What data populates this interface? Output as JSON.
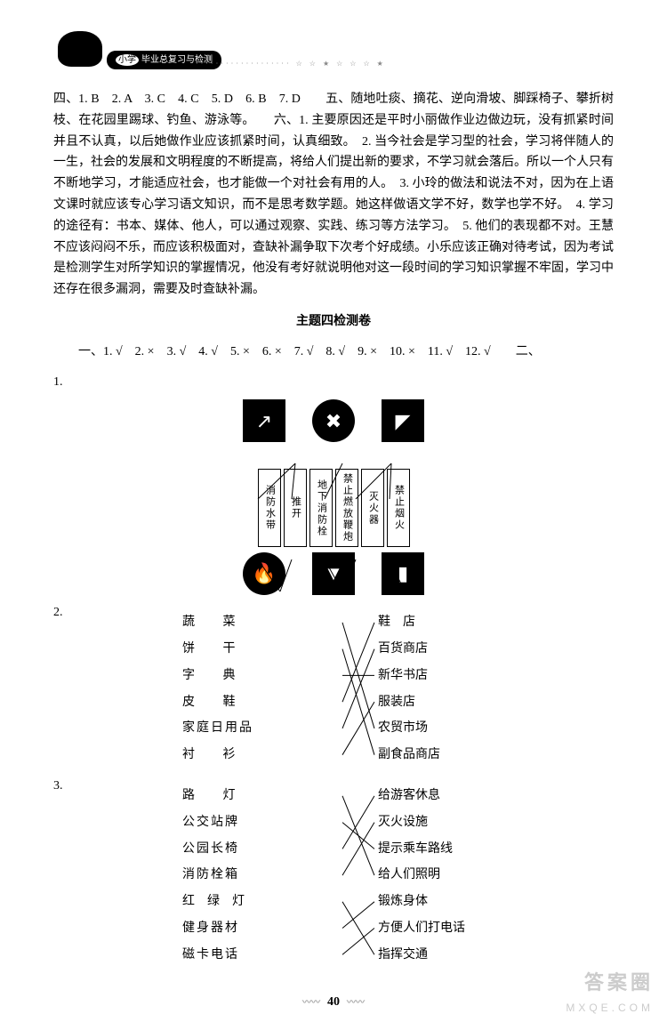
{
  "header": {
    "prefix": "小学",
    "title": "毕业总复习与检测",
    "dots": "···················    ☆  ☆  ★  ☆  ☆  ☆  ★"
  },
  "para1": "四、1. B　2. A　3. C　4. C　5. D　6. B　7. D　　五、随地吐痰、摘花、逆向滑坡、脚踩椅子、攀折树枝、在花园里踢球、钓鱼、游泳等。　　六、1. 主要原因还是平时小丽做作业边做边玩，没有抓紧时间并且不认真，以后她做作业应该抓紧时间，认真细致。　2. 当今社会是学习型的社会，学习将伴随人的一生，社会的发展和文明程度的不断提高，将给人们提出新的要求，不学习就会落后。所以一个人只有不断地学习，才能适应社会，也才能做一个对社会有用的人。　3. 小玲的做法和说法不对，因为在上语文课时就应该专心学习语文知识，而不是思考数学题。她这样做语文学不好，数学也学不好。　4. 学习的途径有：书本、媒体、他人，可以通过观察、实践、练习等方法学习。　5. 他们的表现都不对。王慧不应该闷闷不乐，而应该积极面对，查缺补漏争取下次考个好成绩。小乐应该正确对待考试，因为考试是检测学生对所学知识的掌握情况，他没有考好就说明他对这一段时间的学习知识掌握不牢固，学习中还存在很多漏洞，需要及时查缺补漏。",
  "title4": "主题四检测卷",
  "q1line": "　　一、1. √　2. ×　3. √　4. √　5. ×　6. ×　7. √　8. √　9. ×　10. ×　11. √　12. √　　二、",
  "q1n": "1.",
  "labels": [
    "消防水带",
    "推开",
    "地下消防栓",
    "禁止燃放鞭炮",
    "灭火器",
    "禁止烟火"
  ],
  "q2n": "2.",
  "match2": {
    "left": [
      "蔬　菜",
      "饼　干",
      "字　典",
      "皮　鞋",
      "家庭日用品",
      "衬　衫"
    ],
    "right": [
      "鞋　店",
      "百货商店",
      "新华书店",
      "服装店",
      "农贸市场",
      "副食品商店"
    ],
    "lines": [
      [
        0,
        4
      ],
      [
        1,
        5
      ],
      [
        2,
        2
      ],
      [
        3,
        0
      ],
      [
        4,
        1
      ],
      [
        5,
        3
      ]
    ]
  },
  "q3n": "3.",
  "match3": {
    "left": [
      "路　灯",
      "公交站牌",
      "公园长椅",
      "消防栓箱",
      "红绿灯",
      "健身器材",
      "磁卡电话"
    ],
    "right": [
      "给游客休息",
      "灭火设施",
      "提示乘车路线",
      "给人们照明",
      "锻炼身体",
      "方便人们打电话",
      "指挥交通"
    ],
    "lines": [
      [
        0,
        3
      ],
      [
        1,
        2
      ],
      [
        2,
        0
      ],
      [
        3,
        1
      ],
      [
        4,
        6
      ],
      [
        5,
        4
      ],
      [
        6,
        5
      ]
    ]
  },
  "pagenum": "40",
  "diagram_lines": [
    [
      172,
      58,
      130,
      98
    ],
    [
      172,
      58,
      168,
      98
    ],
    [
      225,
      58,
      205,
      98
    ],
    [
      280,
      58,
      240,
      98
    ],
    [
      280,
      58,
      278,
      98
    ],
    [
      130,
      166,
      155,
      202
    ],
    [
      168,
      166,
      155,
      202
    ],
    [
      205,
      166,
      225,
      202
    ],
    [
      240,
      166,
      225,
      202
    ],
    [
      278,
      166,
      295,
      202
    ]
  ],
  "colors": {
    "bg": "#ffffff",
    "text": "#000000"
  },
  "wm": {
    "l1": "答案圈",
    "l2": "MXQE.COM"
  }
}
